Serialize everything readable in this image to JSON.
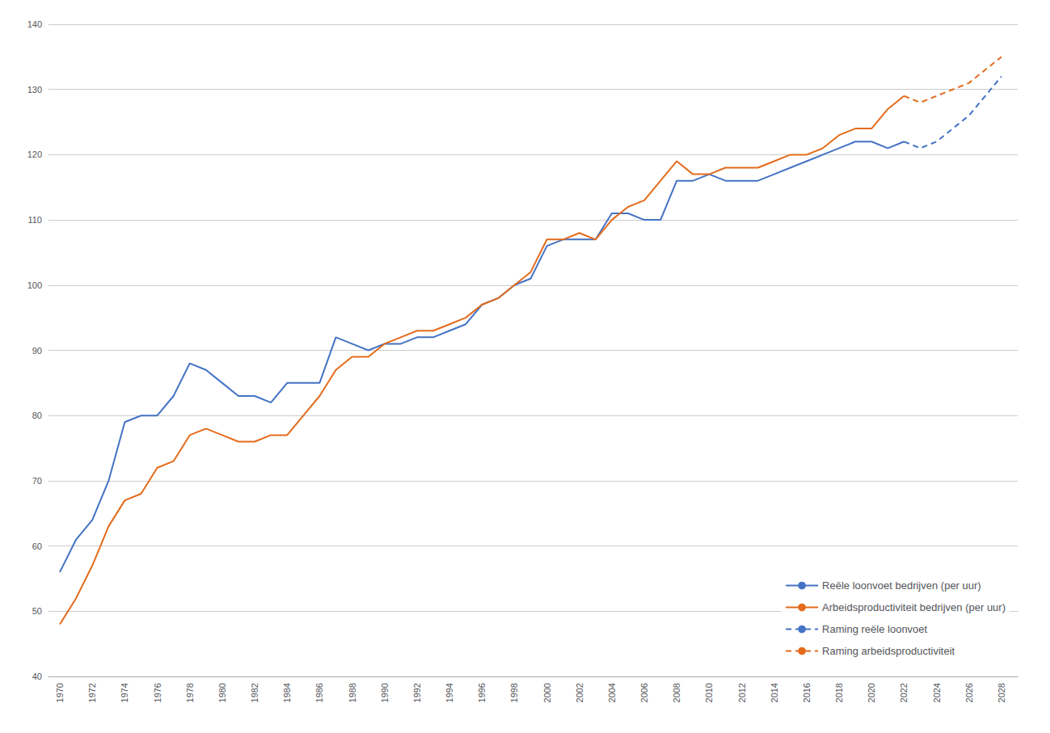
{
  "chart_data": {
    "type": "line",
    "xlim": [
      1969.3,
      2029.0
    ],
    "xticks": [
      1970,
      1972,
      1974,
      1976,
      1978,
      1980,
      1982,
      1984,
      1986,
      1988,
      1990,
      1992,
      1994,
      1996,
      1998,
      2000,
      2002,
      2004,
      2006,
      2008,
      2010,
      2012,
      2014,
      2016,
      2018,
      2020,
      2022,
      2024,
      2026,
      2028
    ],
    "ylim": [
      40,
      140
    ],
    "yticks": [
      40,
      50,
      60,
      70,
      80,
      90,
      100,
      110,
      120,
      130,
      140
    ],
    "grid": true,
    "legend": "lower right",
    "series": [
      {
        "name": "Reële loonvoet bedrijven (per uur)",
        "color": "#4472C4",
        "line_style": "solid",
        "x": [
          1970,
          1971,
          1972,
          1973,
          1974,
          1975,
          1976,
          1977,
          1978,
          1979,
          1980,
          1981,
          1982,
          1983,
          1984,
          1985,
          1986,
          1987,
          1988,
          1989,
          1990,
          1991,
          1992,
          1993,
          1994,
          1995,
          1996,
          1997,
          1998,
          1999,
          2000,
          2001,
          2002,
          2003,
          2004,
          2005,
          2006,
          2007,
          2008,
          2009,
          2010,
          2011,
          2012,
          2013,
          2014,
          2015,
          2016,
          2017,
          2018,
          2019,
          2020,
          2021,
          2022
        ],
        "values": [
          56,
          61,
          64,
          70,
          79,
          80,
          80,
          83,
          88,
          87,
          85,
          83,
          83,
          82,
          85,
          85,
          85,
          92,
          91,
          90,
          91,
          91,
          92,
          92,
          93,
          94,
          97,
          98,
          100,
          101,
          106,
          107,
          107,
          107,
          111,
          111,
          110,
          110,
          116,
          116,
          117,
          116,
          116,
          116,
          117,
          118,
          119,
          120,
          121,
          122,
          122,
          121,
          122
        ]
      },
      {
        "name": "Arbeidsproductiviteit bedrijven (per uur)",
        "color": "#E36B1B",
        "line_style": "solid",
        "x": [
          1970,
          1971,
          1972,
          1973,
          1974,
          1975,
          1976,
          1977,
          1978,
          1979,
          1980,
          1981,
          1982,
          1983,
          1984,
          1985,
          1986,
          1987,
          1988,
          1989,
          1990,
          1991,
          1992,
          1993,
          1994,
          1995,
          1996,
          1997,
          1998,
          1999,
          2000,
          2001,
          2002,
          2003,
          2004,
          2005,
          2006,
          2007,
          2008,
          2009,
          2010,
          2011,
          2012,
          2013,
          2014,
          2015,
          2016,
          2017,
          2018,
          2019,
          2020,
          2021,
          2022
        ],
        "values": [
          48,
          52,
          57,
          63,
          67,
          68,
          72,
          73,
          77,
          78,
          77,
          76,
          76,
          77,
          77,
          80,
          83,
          87,
          89,
          89,
          91,
          92,
          93,
          93,
          94,
          95,
          97,
          98,
          100,
          102,
          107,
          107,
          108,
          107,
          110,
          112,
          113,
          116,
          119,
          117,
          117,
          118,
          118,
          118,
          119,
          120,
          120,
          121,
          123,
          124,
          124,
          127,
          129
        ]
      },
      {
        "name": "Raming reële loonvoet",
        "color": "#4472C4",
        "line_style": "dashed",
        "x": [
          2022,
          2023,
          2024,
          2025,
          2026,
          2027,
          2028
        ],
        "values": [
          122,
          121,
          122,
          124,
          126,
          129,
          132
        ]
      },
      {
        "name": "Raming arbeidsproductiviteit",
        "color": "#E36B1B",
        "line_style": "dashed",
        "x": [
          2022,
          2023,
          2024,
          2025,
          2026,
          2027,
          2028
        ],
        "values": [
          129,
          128,
          129,
          130,
          131,
          133,
          135
        ]
      }
    ]
  }
}
